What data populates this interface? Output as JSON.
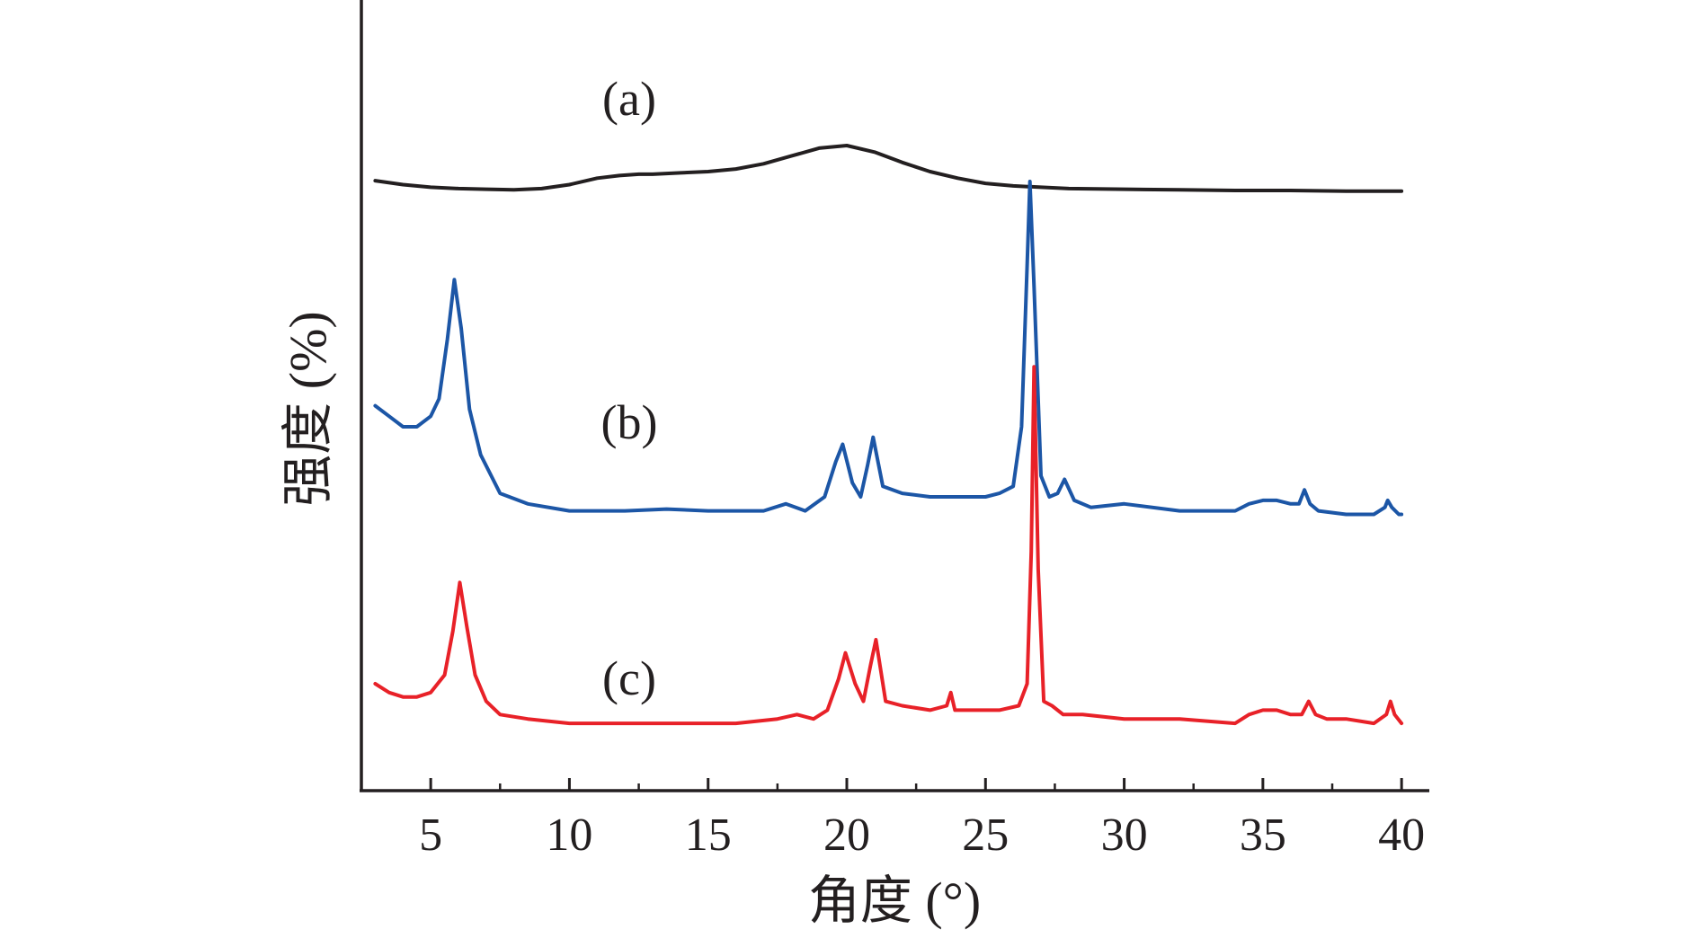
{
  "chart_data": {
    "type": "line",
    "title": "",
    "xlabel": "角度 (°)",
    "ylabel": "强度 (%)",
    "xlim": [
      2.5,
      41
    ],
    "xticks": [
      5,
      10,
      15,
      20,
      25,
      30,
      35,
      40
    ],
    "xtick_labels": [
      "5",
      "10",
      "15",
      "20",
      "25",
      "30",
      "35",
      "40"
    ],
    "y_ticks_shown": false,
    "grid": false,
    "legend": "none",
    "series": [
      {
        "name": "(a)",
        "color": "#231f20",
        "x": [
          3,
          4,
          5,
          6,
          7,
          8,
          9,
          10,
          11,
          11.8,
          12.5,
          13,
          14,
          15,
          16,
          17,
          18,
          19,
          20,
          21,
          22,
          23,
          24,
          25,
          26,
          27,
          28,
          30,
          32,
          34,
          36,
          38,
          40
        ],
        "y": [
          0.53,
          0.5,
          0.48,
          0.47,
          0.465,
          0.46,
          0.47,
          0.5,
          0.55,
          0.57,
          0.58,
          0.58,
          0.59,
          0.6,
          0.62,
          0.66,
          0.72,
          0.78,
          0.8,
          0.75,
          0.67,
          0.6,
          0.55,
          0.51,
          0.49,
          0.48,
          0.47,
          0.465,
          0.46,
          0.455,
          0.455,
          0.45,
          0.45
        ]
      },
      {
        "name": "(b)",
        "color": "#1c56a6",
        "x": [
          3,
          3.5,
          4,
          4.5,
          5,
          5.3,
          5.6,
          5.85,
          6.1,
          6.4,
          6.8,
          7.5,
          8.5,
          10,
          12,
          13.5,
          15,
          17,
          17.8,
          18.5,
          19.2,
          19.6,
          19.85,
          20.2,
          20.5,
          20.75,
          20.95,
          21.3,
          22,
          23,
          24,
          25,
          25.5,
          26,
          26.3,
          26.5,
          26.6,
          26.75,
          27,
          27.3,
          27.6,
          27.85,
          28.2,
          28.8,
          30,
          32,
          34,
          34.5,
          35,
          35.5,
          36,
          36.3,
          36.5,
          36.7,
          37,
          38,
          39,
          39.4,
          39.5,
          39.65,
          39.9,
          40
        ],
        "y": [
          0.36,
          0.33,
          0.3,
          0.3,
          0.33,
          0.38,
          0.55,
          0.72,
          0.58,
          0.35,
          0.22,
          0.11,
          0.08,
          0.06,
          0.06,
          0.065,
          0.06,
          0.06,
          0.08,
          0.06,
          0.1,
          0.2,
          0.25,
          0.14,
          0.1,
          0.19,
          0.27,
          0.13,
          0.11,
          0.1,
          0.1,
          0.1,
          0.11,
          0.13,
          0.3,
          0.76,
          1.0,
          0.7,
          0.16,
          0.1,
          0.11,
          0.15,
          0.09,
          0.07,
          0.08,
          0.06,
          0.06,
          0.08,
          0.09,
          0.09,
          0.08,
          0.08,
          0.12,
          0.08,
          0.06,
          0.05,
          0.05,
          0.07,
          0.09,
          0.07,
          0.05,
          0.05
        ]
      },
      {
        "name": "(c)",
        "color": "#e82128",
        "x": [
          3,
          3.5,
          4,
          4.5,
          5,
          5.5,
          5.8,
          6.05,
          6.3,
          6.6,
          7,
          7.5,
          8.5,
          10,
          12,
          14,
          16,
          17.5,
          18.2,
          18.8,
          19.3,
          19.7,
          19.95,
          20.3,
          20.6,
          20.85,
          21.05,
          21.4,
          22,
          23,
          23.6,
          23.75,
          23.9,
          24.5,
          25.5,
          26.2,
          26.5,
          26.65,
          26.75,
          26.9,
          27.1,
          27.4,
          27.8,
          28.5,
          30,
          32,
          34,
          34.5,
          35,
          35.5,
          36,
          36.4,
          36.65,
          36.9,
          37.3,
          38,
          39,
          39.45,
          39.6,
          39.75,
          40
        ],
        "y": [
          0.1,
          0.08,
          0.07,
          0.07,
          0.08,
          0.12,
          0.22,
          0.33,
          0.23,
          0.12,
          0.06,
          0.03,
          0.02,
          0.01,
          0.01,
          0.01,
          0.01,
          0.02,
          0.03,
          0.02,
          0.04,
          0.11,
          0.17,
          0.1,
          0.06,
          0.14,
          0.2,
          0.06,
          0.05,
          0.04,
          0.05,
          0.08,
          0.04,
          0.04,
          0.04,
          0.05,
          0.1,
          0.4,
          0.82,
          0.36,
          0.06,
          0.05,
          0.03,
          0.03,
          0.02,
          0.02,
          0.01,
          0.03,
          0.04,
          0.04,
          0.03,
          0.03,
          0.06,
          0.03,
          0.02,
          0.02,
          0.01,
          0.03,
          0.06,
          0.03,
          0.01
        ]
      }
    ]
  }
}
